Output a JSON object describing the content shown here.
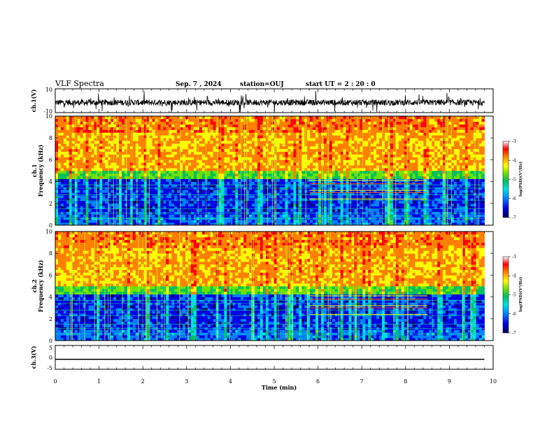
{
  "header": {
    "title": "VLF Spectra",
    "date": "Sep. 7 , 2024",
    "station": "station=OUJ",
    "start": "start UT =  2 : 20 : 0"
  },
  "chart_data": [
    {
      "type": "line",
      "panel": "ch1-waveform",
      "ylabel": "ch.1(V)",
      "ylim": [
        -10,
        10
      ],
      "yticks": [
        "10",
        "-10"
      ],
      "xlim": [
        0,
        10
      ],
      "data_end_min": 9.8,
      "color": "#000000"
    },
    {
      "type": "heatmap",
      "panel": "ch1-spectrogram",
      "ylabel_line1": "ch.1",
      "ylabel_line2": "Frequency (kHz)",
      "ylim": [
        0,
        10
      ],
      "yticks": [
        "0",
        "2",
        "4",
        "6",
        "8",
        "10"
      ],
      "xlim": [
        0,
        10
      ],
      "data_end_min": 9.8,
      "tone_band_min": [
        5.8,
        8.5
      ],
      "colorbar": {
        "label": "log(PSD)(V²/Hz)",
        "range": [
          -7,
          -3
        ],
        "ticks": [
          "-3",
          "-4",
          "-5",
          "-6",
          "-7"
        ]
      }
    },
    {
      "type": "heatmap",
      "panel": "ch2-spectrogram",
      "ylabel_line1": "ch.2",
      "ylabel_line2": "Frequency (kHz)",
      "ylim": [
        0,
        10
      ],
      "yticks": [
        "0",
        "2",
        "4",
        "6",
        "8",
        "10"
      ],
      "xlim": [
        0,
        10
      ],
      "data_end_min": 9.8,
      "tone_band_min": [
        5.8,
        8.5
      ],
      "colorbar": {
        "label": "log(PSD)(V²/Hz)",
        "range": [
          -7,
          -3
        ],
        "ticks": [
          "-3",
          "-4",
          "-5",
          "-6",
          "-7"
        ]
      }
    },
    {
      "type": "line",
      "panel": "ch3-waveform",
      "ylabel": "ch.3(V)",
      "ylim": [
        -5,
        5
      ],
      "yticks": [
        "5",
        "0",
        "-5"
      ],
      "xlim": [
        0,
        10
      ],
      "data_end_min": 9.8,
      "values_constant": -0.8,
      "color": "#000000"
    }
  ],
  "xaxis": {
    "label": "Time (min)",
    "ticks": [
      "0",
      "1",
      "2",
      "3",
      "4",
      "5",
      "6",
      "7",
      "8",
      "9",
      "10"
    ]
  },
  "colors": {
    "colormap": [
      "#000060",
      "#0000e0",
      "#0080ff",
      "#00e0e0",
      "#00c060",
      "#70e000",
      "#ffff00",
      "#ff8000",
      "#ff0000",
      "#ffffff"
    ]
  }
}
